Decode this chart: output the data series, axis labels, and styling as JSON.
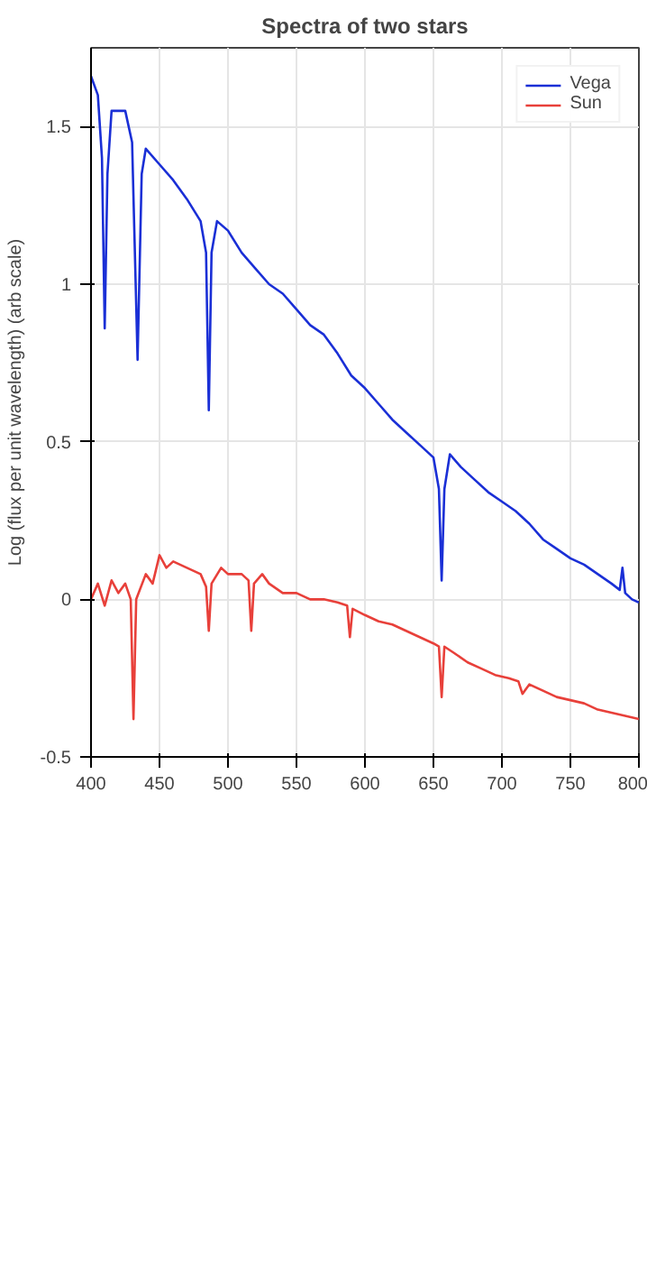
{
  "chart_data": {
    "type": "line",
    "title": "Spectra of two stars",
    "ylabel": "Log (flux per unit wavelength) (arb scale)",
    "xlim": [
      400,
      800
    ],
    "xticks": [
      400,
      450,
      500,
      550,
      600,
      650,
      700,
      750,
      800
    ],
    "ylim": [
      -0.5,
      1.75
    ],
    "yticks": [
      -0.5,
      0,
      0.5,
      1,
      1.5
    ],
    "grid": true,
    "legend": "top right",
    "line_style": "solid",
    "marker": "none",
    "series": [
      {
        "name": "Vega",
        "color": "#1a2fd6",
        "x": [
          400,
          405,
          408,
          410,
          412,
          415,
          425,
          430,
          434,
          437,
          440,
          450,
          460,
          470,
          480,
          484,
          486,
          488,
          492,
          500,
          510,
          520,
          530,
          540,
          550,
          560,
          570,
          580,
          590,
          600,
          610,
          620,
          630,
          640,
          650,
          654,
          656,
          658,
          662,
          670,
          680,
          690,
          700,
          710,
          720,
          730,
          740,
          750,
          760,
          770,
          780,
          786,
          788,
          790,
          795,
          800
        ],
        "values": [
          1.66,
          1.6,
          1.4,
          0.86,
          1.35,
          1.55,
          1.55,
          1.45,
          0.76,
          1.35,
          1.43,
          1.38,
          1.33,
          1.27,
          1.2,
          1.1,
          0.6,
          1.1,
          1.2,
          1.17,
          1.1,
          1.05,
          1.0,
          0.97,
          0.92,
          0.87,
          0.84,
          0.78,
          0.71,
          0.67,
          0.62,
          0.57,
          0.53,
          0.49,
          0.45,
          0.35,
          0.06,
          0.35,
          0.46,
          0.42,
          0.38,
          0.34,
          0.31,
          0.28,
          0.24,
          0.19,
          0.16,
          0.13,
          0.11,
          0.08,
          0.05,
          0.03,
          0.1,
          0.02,
          0.0,
          -0.01
        ]
      },
      {
        "name": "Sun",
        "color": "#e8403a",
        "x": [
          400,
          405,
          410,
          415,
          420,
          425,
          429,
          431,
          433,
          440,
          445,
          450,
          455,
          460,
          470,
          480,
          484,
          486,
          488,
          495,
          500,
          510,
          515,
          517,
          519,
          525,
          530,
          540,
          550,
          560,
          570,
          580,
          587,
          589,
          591,
          600,
          610,
          620,
          630,
          640,
          650,
          654,
          656,
          658,
          665,
          675,
          685,
          695,
          705,
          712,
          715,
          720,
          730,
          740,
          750,
          760,
          770,
          780,
          790,
          800
        ],
        "values": [
          0.0,
          0.05,
          -0.02,
          0.06,
          0.02,
          0.05,
          0.0,
          -0.38,
          0.0,
          0.08,
          0.05,
          0.14,
          0.1,
          0.12,
          0.1,
          0.08,
          0.04,
          -0.1,
          0.05,
          0.1,
          0.08,
          0.08,
          0.06,
          -0.1,
          0.05,
          0.08,
          0.05,
          0.02,
          0.02,
          0.0,
          0.0,
          -0.01,
          -0.02,
          -0.12,
          -0.03,
          -0.05,
          -0.07,
          -0.08,
          -0.1,
          -0.12,
          -0.14,
          -0.15,
          -0.31,
          -0.15,
          -0.17,
          -0.2,
          -0.22,
          -0.24,
          -0.25,
          -0.26,
          -0.3,
          -0.27,
          -0.29,
          -0.31,
          -0.32,
          -0.33,
          -0.35,
          -0.36,
          -0.37,
          -0.38
        ]
      }
    ]
  }
}
